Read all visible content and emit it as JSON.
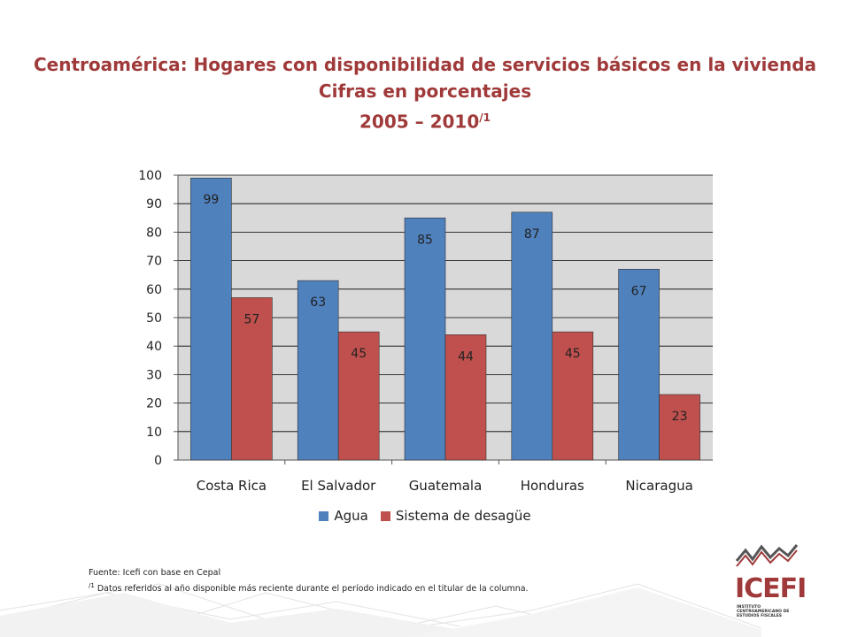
{
  "header": {
    "line1": "Centroamérica: Hogares con disponibilidad de servicios básicos en la vivienda",
    "line2": "Cifras en porcentajes",
    "line3": "2005 – 2010",
    "line3_sup": "/1"
  },
  "chart_data": {
    "type": "bar",
    "categories": [
      "Costa Rica",
      "El Salvador",
      "Guatemala",
      "Honduras",
      "Nicaragua"
    ],
    "series": [
      {
        "name": "Agua",
        "values": [
          99,
          63,
          85,
          87,
          67
        ],
        "color": "#4f81bd"
      },
      {
        "name": "Sistema de desagüe",
        "values": [
          57,
          45,
          44,
          45,
          23
        ],
        "color": "#c0504d"
      }
    ],
    "yticks": [
      0,
      10,
      20,
      30,
      40,
      50,
      60,
      70,
      80,
      90,
      100
    ],
    "ylim": [
      0,
      100
    ],
    "grid": true,
    "legend_position": "bottom",
    "plot_background": "#d9d9d9"
  },
  "footnotes": {
    "source": "Fuente: Icefi con base en Cepal",
    "note_sup": "/1",
    "note": " Datos referidos al año disponible más reciente durante el período indicado en el titular de la columna."
  },
  "logo": {
    "name": "ICEFI",
    "subtitle": "INSTITUTO CENTROAMERICANO DE ESTUDIOS FISCALES"
  }
}
